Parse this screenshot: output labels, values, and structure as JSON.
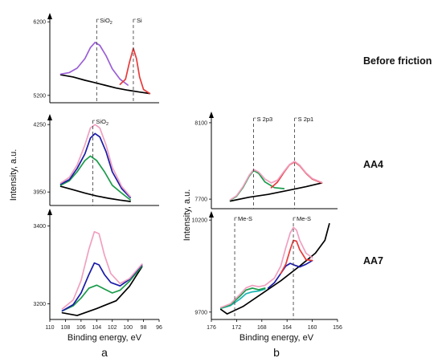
{
  "chart_data": [
    {
      "id": "a1",
      "type": "line",
      "panel_label": "a",
      "row_label": "Before friction",
      "xlim": [
        110,
        96
      ],
      "ylim": [
        5100,
        6300
      ],
      "xticks": [],
      "yticks": [
        5200,
        6200
      ],
      "annotations": [
        {
          "text": "SiO",
          "sub": "2",
          "x": 104
        },
        {
          "text": "Si",
          "sub": "",
          "x": 99.3
        }
      ],
      "series": [
        {
          "color": "#000000",
          "points": [
            [
              108.6,
              5480
            ],
            [
              107,
              5450
            ],
            [
              105.5,
              5405
            ],
            [
              104.5,
              5380
            ],
            [
              103,
              5340
            ],
            [
              101.5,
              5300
            ],
            [
              100,
              5270
            ],
            [
              98.5,
              5245
            ],
            [
              97.2,
              5225
            ]
          ]
        },
        {
          "color": "#9b5fd6",
          "points": [
            [
              108.6,
              5490
            ],
            [
              107.5,
              5510
            ],
            [
              106.5,
              5570
            ],
            [
              105.5,
              5700
            ],
            [
              104.8,
              5850
            ],
            [
              104.2,
              5920
            ],
            [
              103.6,
              5880
            ],
            [
              102.8,
              5740
            ],
            [
              102,
              5560
            ],
            [
              101,
              5420
            ],
            [
              100,
              5340
            ]
          ]
        },
        {
          "color": "#e83a3a",
          "points": [
            [
              101,
              5350
            ],
            [
              100.3,
              5420
            ],
            [
              99.8,
              5650
            ],
            [
              99.3,
              5840
            ],
            [
              98.9,
              5700
            ],
            [
              98.5,
              5450
            ],
            [
              98,
              5280
            ],
            [
              97.2,
              5225
            ]
          ]
        }
      ]
    },
    {
      "id": "a2",
      "type": "line",
      "row_label": "AA4",
      "xlim": [
        110,
        96
      ],
      "ylim": [
        3890,
        4290
      ],
      "xticks": [],
      "yticks": [
        3950,
        4250
      ],
      "annotations": [
        {
          "text": "SiO",
          "sub": "2",
          "x": 104.5
        }
      ],
      "series": [
        {
          "color": "#000000",
          "points": [
            [
              108.6,
              3975
            ],
            [
              107,
              3960
            ],
            [
              105.5,
              3945
            ],
            [
              104,
              3932
            ],
            [
              102.5,
              3922
            ],
            [
              101,
              3914
            ],
            [
              99.7,
              3908
            ]
          ]
        },
        {
          "color": "#1a9b4a",
          "points": [
            [
              108.6,
              3980
            ],
            [
              107.5,
              4000
            ],
            [
              106.5,
              4040
            ],
            [
              105.5,
              4090
            ],
            [
              104.8,
              4110
            ],
            [
              104,
              4090
            ],
            [
              103,
              4040
            ],
            [
              102,
              3980
            ],
            [
              100.8,
              3945
            ],
            [
              99.7,
              3915
            ]
          ]
        },
        {
          "color": "#1a1aa8",
          "points": [
            [
              108.6,
              3985
            ],
            [
              107.5,
              4005
            ],
            [
              106.5,
              4055
            ],
            [
              105.5,
              4120
            ],
            [
              104.8,
              4190
            ],
            [
              104.2,
              4210
            ],
            [
              103.6,
              4195
            ],
            [
              102.8,
              4130
            ],
            [
              102,
              4040
            ],
            [
              100.8,
              3965
            ],
            [
              99.7,
              3925
            ]
          ]
        },
        {
          "color": "#f0a0c0",
          "points": [
            [
              108.6,
              3990
            ],
            [
              107.5,
              4015
            ],
            [
              106.5,
              4070
            ],
            [
              105.5,
              4160
            ],
            [
              104.8,
              4235
            ],
            [
              104.2,
              4250
            ],
            [
              103.6,
              4235
            ],
            [
              102.8,
              4160
            ],
            [
              102,
              4060
            ],
            [
              100.8,
              3975
            ],
            [
              99.7,
              3930
            ]
          ]
        }
      ]
    },
    {
      "id": "a3",
      "type": "line",
      "xlim": [
        110,
        96
      ],
      "ylim": [
        3160,
        3440
      ],
      "xticks": [
        110,
        108,
        106,
        104,
        102,
        100,
        98,
        96
      ],
      "yticks": [
        3200,
        3400
      ],
      "xlabel": "Binding energy, eV",
      "annotations": [],
      "series": [
        {
          "color": "#000000",
          "points": [
            [
              108.4,
              3177
            ],
            [
              106.5,
              3170
            ],
            [
              104,
              3188
            ],
            [
              101.5,
              3208
            ],
            [
              99.8,
              3245
            ],
            [
              98.2,
              3295
            ]
          ]
        },
        {
          "color": "#1a9b4a",
          "points": [
            [
              108.4,
              3182
            ],
            [
              107,
              3195
            ],
            [
              106,
              3215
            ],
            [
              105,
              3240
            ],
            [
              104,
              3248
            ],
            [
              103,
              3238
            ],
            [
              102,
              3228
            ],
            [
              101,
              3235
            ],
            [
              99.8,
              3258
            ],
            [
              98.2,
              3297
            ]
          ]
        },
        {
          "color": "#1a1aa8",
          "points": [
            [
              108.4,
              3182
            ],
            [
              107,
              3198
            ],
            [
              106,
              3228
            ],
            [
              105,
              3275
            ],
            [
              104.3,
              3305
            ],
            [
              103.7,
              3300
            ],
            [
              103,
              3275
            ],
            [
              102.2,
              3255
            ],
            [
              101,
              3246
            ],
            [
              99.8,
              3263
            ],
            [
              98.2,
              3300
            ]
          ]
        },
        {
          "color": "#f0a0c0",
          "points": [
            [
              108.4,
              3187
            ],
            [
              107,
              3210
            ],
            [
              106,
              3260
            ],
            [
              105,
              3340
            ],
            [
              104.3,
              3385
            ],
            [
              103.7,
              3380
            ],
            [
              103,
              3325
            ],
            [
              102.2,
              3278
            ],
            [
              101,
              3252
            ],
            [
              99.8,
              3265
            ],
            [
              98.2,
              3302
            ]
          ]
        }
      ]
    },
    {
      "id": "b1",
      "type": "line",
      "panel_label": "b",
      "row_label": "AA4",
      "xlim": [
        176,
        156
      ],
      "ylim": [
        7650,
        8150
      ],
      "xticks": [],
      "yticks": [
        7700,
        8100
      ],
      "annotations": [
        {
          "text": "S 2p3",
          "sub": "",
          "x": 169.3
        },
        {
          "text": "S 2p1",
          "sub": "",
          "x": 162.8
        }
      ],
      "series": [
        {
          "color": "#000000",
          "points": [
            [
              173,
              7690
            ],
            [
              170,
              7710
            ],
            [
              167,
              7725
            ],
            [
              164,
              7745
            ],
            [
              161,
              7765
            ],
            [
              158.5,
              7785
            ]
          ]
        },
        {
          "color": "#1a9b4a",
          "points": [
            [
              173,
              7695
            ],
            [
              172,
              7715
            ],
            [
              171,
              7760
            ],
            [
              170,
              7820
            ],
            [
              169.3,
              7850
            ],
            [
              168.5,
              7835
            ],
            [
              167.5,
              7790
            ],
            [
              166,
              7760
            ],
            [
              164.5,
              7755
            ]
          ]
        },
        {
          "color": "#e83a3a",
          "points": [
            [
              166.5,
              7760
            ],
            [
              165.5,
              7790
            ],
            [
              164.5,
              7840
            ],
            [
              163.6,
              7880
            ],
            [
              162.8,
              7895
            ],
            [
              162,
              7875
            ],
            [
              161,
              7835
            ],
            [
              160,
              7805
            ],
            [
              158.5,
              7785
            ]
          ]
        },
        {
          "color": "#f0a0c0",
          "points": [
            [
              173,
              7697
            ],
            [
              172,
              7718
            ],
            [
              171,
              7765
            ],
            [
              170,
              7825
            ],
            [
              169.3,
              7855
            ],
            [
              168.5,
              7842
            ],
            [
              167.5,
              7805
            ],
            [
              166.5,
              7785
            ],
            [
              165.5,
              7800
            ],
            [
              164.5,
              7845
            ],
            [
              163.6,
              7882
            ],
            [
              162.8,
              7898
            ],
            [
              162,
              7878
            ],
            [
              161,
              7838
            ],
            [
              160,
              7808
            ],
            [
              158.5,
              7788
            ]
          ]
        }
      ]
    },
    {
      "id": "b2",
      "type": "line",
      "row_label": "AA7",
      "xlim": [
        176,
        156
      ],
      "ylim": [
        9660,
        10240
      ],
      "xticks": [
        176,
        172,
        168,
        164,
        160,
        156
      ],
      "yticks": [
        9700,
        10200
      ],
      "xlabel": "Binding energy, eV",
      "annotations": [
        {
          "text": "Me-S",
          "sub": "",
          "x": 172.3
        },
        {
          "text": "Me-S",
          "sub": "",
          "x": 163
        }
      ],
      "series": [
        {
          "color": "#000000",
          "points": [
            [
              174.5,
              9715
            ],
            [
              173.5,
              9690
            ],
            [
              171,
              9730
            ],
            [
              168,
              9800
            ],
            [
              165,
              9870
            ],
            [
              162,
              9950
            ],
            [
              159.5,
              10020
            ],
            [
              158,
              10090
            ],
            [
              157.3,
              10180
            ]
          ]
        },
        {
          "color": "#1ab4b4",
          "points": [
            [
              174.5,
              9720
            ],
            [
              173,
              9735
            ],
            [
              171.5,
              9770
            ],
            [
              170.5,
              9800
            ],
            [
              169.5,
              9810
            ],
            [
              168.5,
              9815
            ],
            [
              167.5,
              9825
            ]
          ]
        },
        {
          "color": "#1a9b4a",
          "points": [
            [
              174.5,
              9722
            ],
            [
              173,
              9740
            ],
            [
              171.5,
              9785
            ],
            [
              170.5,
              9820
            ],
            [
              169.5,
              9830
            ],
            [
              168.5,
              9822
            ],
            [
              167.5,
              9830
            ]
          ]
        },
        {
          "color": "#1a1aa8",
          "points": [
            [
              167,
              9830
            ],
            [
              166,
              9860
            ],
            [
              165,
              9910
            ],
            [
              164.2,
              9950
            ],
            [
              163.5,
              9965
            ],
            [
              162.8,
              9955
            ],
            [
              162,
              9945
            ],
            [
              161,
              9960
            ],
            [
              160,
              9980
            ]
          ]
        },
        {
          "color": "#e83a3a",
          "points": [
            [
              165,
              9910
            ],
            [
              164.2,
              9960
            ],
            [
              163.5,
              10040
            ],
            [
              163,
              10090
            ],
            [
              162.5,
              10085
            ],
            [
              162,
              10040
            ],
            [
              161,
              9985
            ],
            [
              160,
              9980
            ]
          ]
        },
        {
          "color": "#f0a0c0",
          "points": [
            [
              174.5,
              9725
            ],
            [
              173,
              9745
            ],
            [
              171.5,
              9795
            ],
            [
              170.5,
              9832
            ],
            [
              169.5,
              9845
            ],
            [
              168.5,
              9838
            ],
            [
              167.5,
              9845
            ],
            [
              166,
              9885
            ],
            [
              165,
              9950
            ],
            [
              164.2,
              10050
            ],
            [
              163.5,
              10130
            ],
            [
              163,
              10160
            ],
            [
              162.5,
              10145
            ],
            [
              162,
              10090
            ],
            [
              161,
              10020
            ],
            [
              160,
              9995
            ]
          ]
        }
      ]
    }
  ],
  "shared": {
    "ylabel": "Intensity, a.u.",
    "row_labels": [
      "Before friction",
      "AA4",
      "AA7"
    ],
    "panel_labels": [
      "a",
      "b"
    ],
    "x_tick_labels_a": [
      "110",
      "108",
      "106",
      "104",
      "102",
      "100",
      "98",
      "96"
    ],
    "x_tick_labels_b": [
      "176",
      "172",
      "168",
      "164",
      "160",
      "156"
    ]
  }
}
